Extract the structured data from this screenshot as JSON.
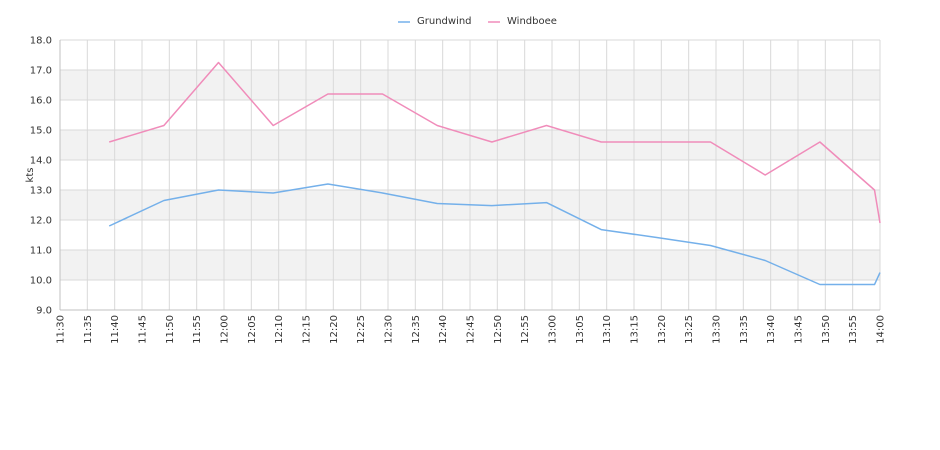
{
  "chart_data": {
    "type": "line",
    "title": "",
    "xlabel": "",
    "ylabel": "kts",
    "ylim": [
      9.0,
      18.0
    ],
    "yticks": [
      "9.0",
      "10.0",
      "11.0",
      "12.0",
      "13.0",
      "14.0",
      "15.0",
      "16.0",
      "17.0",
      "18.0"
    ],
    "x_ticks": [
      "11:30",
      "11:35",
      "11:40",
      "11:45",
      "11:50",
      "11:55",
      "12:00",
      "12:05",
      "12:10",
      "12:15",
      "12:20",
      "12:25",
      "12:30",
      "12:35",
      "12:40",
      "12:45",
      "12:50",
      "12:55",
      "13:00",
      "13:05",
      "13:10",
      "13:15",
      "13:20",
      "13:25",
      "13:30",
      "13:35",
      "13:40",
      "13:45",
      "13:50",
      "13:55",
      "14:00"
    ],
    "xlim": [
      "11:30",
      "14:00"
    ],
    "grid": true,
    "legend_position": "top-center",
    "series": [
      {
        "name": "Grundwind",
        "color": "#74b0ea",
        "points": [
          {
            "x": "11:39",
            "y": 11.8
          },
          {
            "x": "11:49",
            "y": 12.65
          },
          {
            "x": "11:59",
            "y": 13.0
          },
          {
            "x": "12:09",
            "y": 12.9
          },
          {
            "x": "12:19",
            "y": 13.2
          },
          {
            "x": "12:29",
            "y": 12.9
          },
          {
            "x": "12:39",
            "y": 12.55
          },
          {
            "x": "12:49",
            "y": 12.48
          },
          {
            "x": "12:59",
            "y": 12.58
          },
          {
            "x": "13:09",
            "y": 11.68
          },
          {
            "x": "13:19",
            "y": 11.42
          },
          {
            "x": "13:29",
            "y": 11.15
          },
          {
            "x": "13:39",
            "y": 10.65
          },
          {
            "x": "13:49",
            "y": 9.85
          },
          {
            "x": "13:59",
            "y": 9.85
          },
          {
            "x": "14:00",
            "y": 10.25
          }
        ]
      },
      {
        "name": "Windboee",
        "color": "#f08cba",
        "points": [
          {
            "x": "11:39",
            "y": 14.6
          },
          {
            "x": "11:49",
            "y": 15.15
          },
          {
            "x": "11:59",
            "y": 17.25
          },
          {
            "x": "12:09",
            "y": 15.15
          },
          {
            "x": "12:19",
            "y": 16.2
          },
          {
            "x": "12:29",
            "y": 16.2
          },
          {
            "x": "12:39",
            "y": 15.15
          },
          {
            "x": "12:49",
            "y": 14.6
          },
          {
            "x": "12:59",
            "y": 15.15
          },
          {
            "x": "13:09",
            "y": 14.6
          },
          {
            "x": "13:19",
            "y": 14.6
          },
          {
            "x": "13:29",
            "y": 14.6
          },
          {
            "x": "13:39",
            "y": 13.5
          },
          {
            "x": "13:49",
            "y": 14.6
          },
          {
            "x": "13:59",
            "y": 13.0
          },
          {
            "x": "14:00",
            "y": 11.9
          }
        ]
      }
    ],
    "colors": {
      "band": "#f2f2f2",
      "grid": "#d9d9d9",
      "axis": "#c0c0c0",
      "text": "#333333"
    }
  }
}
